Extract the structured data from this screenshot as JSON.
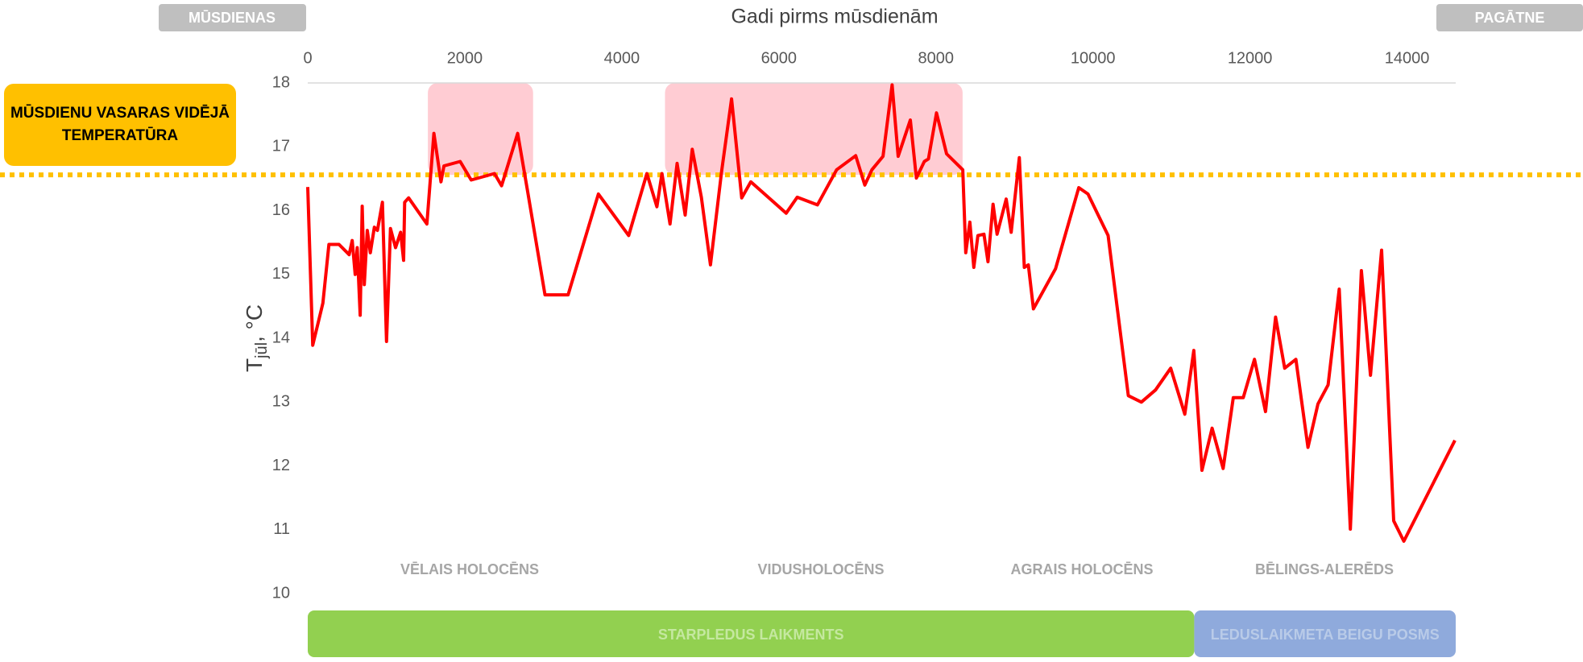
{
  "header": {
    "left_button": "MŪSDIENAS",
    "right_button": "PAGĀTNE"
  },
  "chart_data": {
    "type": "line",
    "x_label": "Gadi pirms mūsdienām",
    "y_label": {
      "main": "T",
      "sub": "jūl",
      "unit": ", °C"
    },
    "x": [
      0,
      64,
      193,
      270,
      398,
      527,
      566,
      604,
      630,
      668,
      694,
      720,
      758,
      797,
      848,
      887,
      951,
      1003,
      1054,
      1118,
      1183,
      1221,
      1234,
      1285,
      1517,
      1607,
      1697,
      1735,
      1941,
      2082,
      2378,
      2468,
      2674,
      2802,
      3021,
      3316,
      3702,
      4087,
      4319,
      4447,
      4511,
      4614,
      4704,
      4807,
      4897,
      5013,
      5129,
      5270,
      5398,
      5527,
      5643,
      6093,
      6234,
      6491,
      6735,
      6979,
      7095,
      7185,
      7326,
      7442,
      7519,
      7674,
      7751,
      7853,
      7905,
      8008,
      8136,
      8342,
      8380,
      8432,
      8483,
      8535,
      8612,
      8663,
      8728,
      8779,
      8895,
      8959,
      9062,
      9126,
      9177,
      9242,
      9524,
      9820,
      9936,
      10193,
      10450,
      10617,
      10797,
      10990,
      11170,
      11285,
      11388,
      11517,
      11658,
      11787,
      11915,
      12057,
      12198,
      12326,
      12442,
      12584,
      12738,
      12866,
      12995,
      13136,
      13278,
      13419,
      13535,
      13676,
      13830,
      13959,
      14610
    ],
    "values": [
      16.37,
      13.89,
      14.55,
      15.47,
      15.47,
      15.31,
      15.53,
      15.0,
      15.42,
      14.36,
      16.07,
      14.84,
      15.69,
      15.34,
      15.74,
      15.69,
      16.13,
      13.95,
      15.72,
      15.42,
      15.66,
      15.22,
      16.13,
      16.2,
      15.79,
      17.21,
      16.45,
      16.7,
      16.77,
      16.48,
      16.58,
      16.39,
      17.21,
      16.29,
      14.68,
      14.68,
      16.26,
      15.61,
      16.58,
      16.06,
      16.58,
      15.79,
      16.74,
      15.93,
      16.96,
      16.21,
      15.15,
      16.61,
      17.75,
      16.2,
      16.45,
      15.96,
      16.21,
      16.09,
      16.64,
      16.86,
      16.4,
      16.64,
      16.85,
      17.97,
      16.85,
      17.42,
      16.51,
      16.77,
      16.81,
      17.53,
      16.89,
      16.64,
      15.34,
      15.82,
      15.11,
      15.61,
      15.63,
      15.2,
      16.1,
      15.63,
      16.18,
      15.66,
      16.83,
      15.11,
      15.15,
      14.46,
      15.09,
      16.36,
      16.26,
      15.61,
      13.1,
      13.0,
      13.19,
      13.53,
      12.81,
      13.81,
      11.93,
      12.59,
      11.96,
      13.07,
      13.07,
      13.67,
      12.85,
      14.33,
      13.53,
      13.67,
      12.29,
      12.97,
      13.27,
      14.77,
      11.01,
      15.06,
      13.42,
      15.38,
      11.14,
      10.82,
      12.4
    ],
    "color": "#ff0000",
    "xlim": [
      0,
      14620
    ],
    "xticks": [
      0,
      2000,
      4000,
      6000,
      8000,
      10000,
      12000,
      14000
    ],
    "ylim": [
      10,
      18
    ],
    "yticks": [
      10,
      11,
      12,
      13,
      14,
      15,
      16,
      17,
      18
    ],
    "reference_line": {
      "value": 16.56,
      "label": "MŪSDIENU VASARAS VIDĒJĀ TEMPERATŪRA",
      "color": "#ffc000"
    },
    "highlights": [
      {
        "x": [
          1530,
          2870
        ],
        "y": [
          16.56,
          18
        ]
      },
      {
        "x": [
          4550,
          8340
        ],
        "y": [
          16.56,
          18
        ]
      }
    ],
    "highlight_color": "#ffc7ce",
    "periods": [
      "VĒLAIS HOLOCĒNS",
      "VIDUSHOLOCĒNS",
      "AGRAIS HOLOCĒNS",
      "BĒLINGS-ALERĒDS"
    ],
    "eras": [
      {
        "label": "STARPLEDUS LAIKMENTS",
        "start": 0,
        "end": 11290,
        "color": "#92d050"
      },
      {
        "label": "LEDUSLAIKMETA BEIGU POSMS",
        "start": 11290,
        "end": 14620,
        "color": "#8faadc"
      }
    ]
  }
}
